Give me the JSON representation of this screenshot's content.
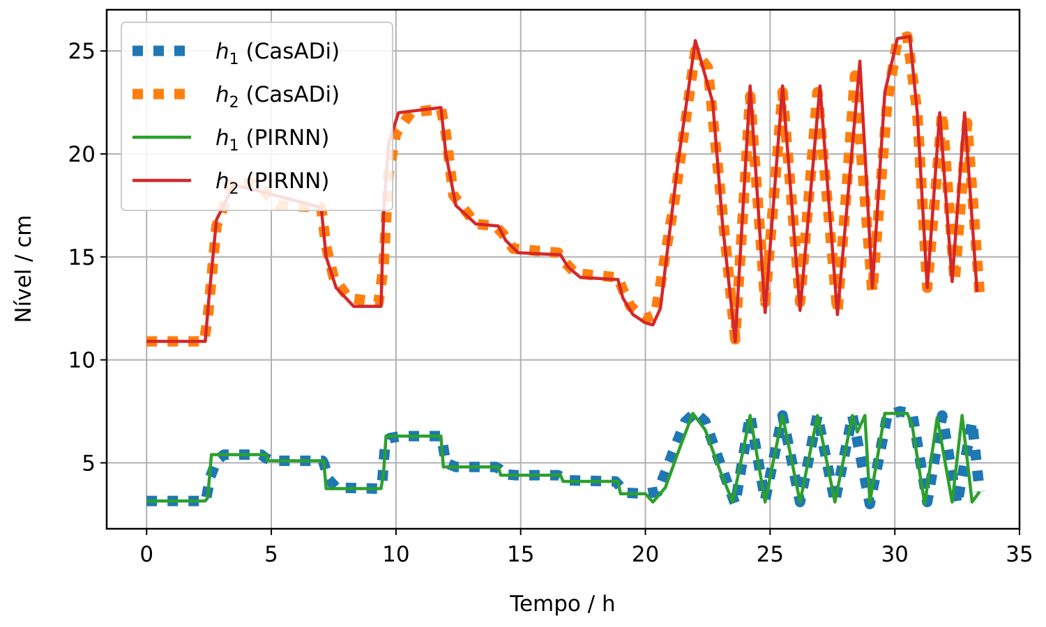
{
  "chart_data": {
    "type": "line",
    "xlabel": "Tempo / h",
    "ylabel": "Nível / cm",
    "xlim": [
      -1.6,
      35
    ],
    "ylim": [
      1.8,
      27
    ],
    "xticks": [
      "0",
      "5",
      "10",
      "15",
      "20",
      "25",
      "30",
      "35"
    ],
    "yticks": [
      "5",
      "10",
      "15",
      "20",
      "25"
    ],
    "grid": true,
    "legend_position": "top-left",
    "legend": [
      {
        "var": "h",
        "sub": "1",
        "label": " (CasADi)",
        "style": "dotted",
        "color": "#1f77b4"
      },
      {
        "var": "h",
        "sub": "2",
        "label": " (CasADi)",
        "style": "dotted",
        "color": "#ff7f0e"
      },
      {
        "var": "h",
        "sub": "1",
        "label": " (PIRNN)",
        "style": "solid",
        "color": "#2ca02c"
      },
      {
        "var": "h",
        "sub": "2",
        "label": " (PIRNN)",
        "style": "solid",
        "color": "#d62728"
      }
    ],
    "series": [
      {
        "name": "h1 (CasADi)",
        "color": "#1f77b4",
        "style": "dotted",
        "x": [
          0,
          2.35,
          2.38,
          2.55,
          2.8,
          3.1,
          4.6,
          4.75,
          5.0,
          7.05,
          7.1,
          7.3,
          7.6,
          9.3,
          9.45,
          9.55,
          9.75,
          10.2,
          11.8,
          11.85,
          12.0,
          12.4,
          14.0,
          14.15,
          14.35,
          14.8,
          16.5,
          16.65,
          16.9,
          18.8,
          18.95,
          19.2,
          20.0,
          20.5,
          21.1,
          21.6,
          22.0,
          22.4,
          22.9,
          23.6,
          24.2,
          24.8,
          25.5,
          26.2,
          26.9,
          27.6,
          28.3,
          29.0,
          29.7,
          30.2,
          30.7,
          31.3,
          31.9,
          32.5,
          33.1,
          33.4
        ],
        "y": [
          3.15,
          3.15,
          3.2,
          4.3,
          5.1,
          5.4,
          5.4,
          5.25,
          5.1,
          5.1,
          5.0,
          4.2,
          3.8,
          3.75,
          4.1,
          5.7,
          6.2,
          6.3,
          6.3,
          6.1,
          5.0,
          4.8,
          4.8,
          4.7,
          4.45,
          4.4,
          4.4,
          4.3,
          4.15,
          4.1,
          3.9,
          3.55,
          3.5,
          3.6,
          5.5,
          7.0,
          7.45,
          7.0,
          5.3,
          3.0,
          7.3,
          3.2,
          7.3,
          3.1,
          7.3,
          3.1,
          7.3,
          3.0,
          7.3,
          7.5,
          7.4,
          3.1,
          7.3,
          3.0,
          7.0,
          3.6
        ]
      },
      {
        "name": "h2 (CasADi)",
        "color": "#ff7f0e",
        "style": "dotted",
        "x": [
          0,
          2.3,
          2.45,
          2.8,
          3.4,
          4.2,
          4.7,
          5.3,
          7.0,
          7.2,
          7.5,
          8.1,
          9.3,
          9.5,
          9.7,
          10.0,
          10.6,
          11.8,
          12.0,
          12.3,
          13.2,
          14.0,
          14.3,
          14.7,
          16.5,
          16.8,
          17.2,
          18.9,
          19.1,
          19.4,
          20.0,
          20.4,
          21.2,
          22.0,
          22.5,
          23.6,
          24.2,
          24.8,
          25.5,
          26.2,
          26.9,
          27.7,
          28.4,
          29.1,
          29.7,
          30.1,
          30.5,
          30.9,
          31.3,
          31.9,
          32.4,
          32.9,
          33.4
        ],
        "y": [
          10.9,
          10.9,
          12.0,
          16.5,
          18.5,
          18.6,
          18.2,
          17.5,
          17.4,
          15.5,
          14.0,
          13.0,
          12.8,
          14.5,
          19.0,
          21.0,
          22.0,
          22.2,
          21.0,
          18.0,
          16.6,
          16.5,
          16.1,
          15.4,
          15.2,
          14.7,
          14.2,
          14.0,
          13.4,
          12.6,
          12.0,
          12.2,
          18.0,
          25.0,
          24.2,
          11.0,
          22.8,
          12.8,
          23.0,
          12.8,
          23.0,
          12.3,
          23.8,
          13.3,
          22.5,
          25.5,
          25.7,
          22.0,
          13.5,
          22.0,
          13.8,
          21.5,
          13.2
        ]
      },
      {
        "name": "h1 (PIRNN)",
        "color": "#2ca02c",
        "style": "solid",
        "x": [
          0,
          2.35,
          2.45,
          2.6,
          4.8,
          4.85,
          7.1,
          7.2,
          9.4,
          9.5,
          9.6,
          11.8,
          11.9,
          14.1,
          14.2,
          16.6,
          16.7,
          18.9,
          19.0,
          20.0,
          20.3,
          20.8,
          21.4,
          21.9,
          22.4,
          23.0,
          23.5,
          24.2,
          24.8,
          25.5,
          26.2,
          26.9,
          27.6,
          28.3,
          28.5,
          28.8,
          29.0,
          29.6,
          30.5,
          30.7,
          31.2,
          31.7,
          32.3,
          32.7,
          33.1,
          33.4
        ],
        "y": [
          3.15,
          3.15,
          3.3,
          5.4,
          5.4,
          5.1,
          5.1,
          3.75,
          3.75,
          4.5,
          6.3,
          6.3,
          4.8,
          4.8,
          4.4,
          4.4,
          4.1,
          4.1,
          3.5,
          3.5,
          3.1,
          3.8,
          5.8,
          7.4,
          6.6,
          4.6,
          3.1,
          7.3,
          3.1,
          7.3,
          3.1,
          7.3,
          3.1,
          7.3,
          6.5,
          7.3,
          3.1,
          7.4,
          7.4,
          6.8,
          3.0,
          7.2,
          3.1,
          7.3,
          3.1,
          3.6
        ]
      },
      {
        "name": "h2 (PIRNN)",
        "color": "#d62728",
        "style": "solid",
        "x": [
          0,
          2.35,
          2.5,
          2.8,
          3.5,
          4.5,
          7.0,
          7.2,
          7.6,
          8.3,
          9.4,
          9.5,
          9.7,
          10.1,
          11.8,
          12.0,
          12.4,
          13.2,
          14.1,
          14.4,
          14.9,
          16.6,
          16.9,
          17.4,
          18.9,
          19.1,
          19.5,
          20.0,
          20.3,
          20.6,
          21.3,
          22.0,
          22.7,
          23.1,
          23.6,
          24.2,
          24.8,
          25.5,
          26.2,
          27.0,
          27.7,
          28.6,
          29.1,
          29.6,
          30.1,
          30.6,
          30.9,
          31.3,
          31.8,
          32.3,
          32.8,
          33.3
        ],
        "y": [
          10.9,
          10.9,
          13.0,
          16.8,
          18.5,
          18.2,
          17.4,
          15.0,
          13.5,
          12.6,
          12.6,
          17.0,
          20.5,
          22.0,
          22.25,
          20.0,
          17.5,
          16.6,
          16.5,
          15.8,
          15.2,
          15.1,
          14.5,
          14.0,
          13.9,
          13.0,
          12.2,
          11.8,
          11.7,
          12.5,
          19.5,
          25.5,
          22.5,
          16.5,
          10.9,
          23.3,
          12.3,
          23.3,
          12.4,
          23.3,
          12.2,
          24.5,
          13.5,
          23.0,
          25.6,
          25.7,
          22.0,
          13.5,
          22.0,
          13.8,
          22.0,
          13.3
        ]
      }
    ]
  }
}
